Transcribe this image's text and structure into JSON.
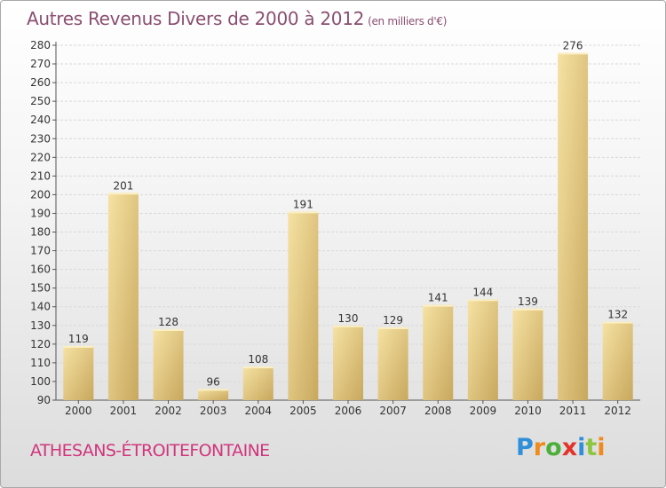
{
  "title": "Autres Revenus Divers de 2000 à 2012",
  "subtitle": "(en milliers d'€)",
  "location": "ATHESANS-ÉTROITEFONTAINE",
  "logo": {
    "letters": [
      "P",
      "r",
      "o",
      "x",
      "i",
      "t",
      "i"
    ],
    "colors": [
      "#2f8fd8",
      "#f08a1c",
      "#4caf3a",
      "#e4322b",
      "#2f8fd8",
      "#8dc63f",
      "#f08a1c"
    ]
  },
  "colors": {
    "title": "#8a4f70",
    "location": "#d0357d",
    "bar_light": "#f6e2a3",
    "bar_dark": "#c8a85e",
    "grid": "#d9d9d9"
  },
  "chart_data": {
    "type": "bar",
    "title": "Autres Revenus Divers de 2000 à 2012",
    "subtitle": "(en milliers d'€)",
    "xlabel": "",
    "ylabel": "",
    "categories": [
      "2000",
      "2001",
      "2002",
      "2003",
      "2004",
      "2005",
      "2006",
      "2007",
      "2008",
      "2009",
      "2010",
      "2011",
      "2012"
    ],
    "values": [
      119,
      201,
      128,
      96,
      108,
      191,
      130,
      129,
      141,
      144,
      139,
      276,
      132
    ],
    "ylim": [
      90,
      280
    ],
    "yticks": [
      90,
      100,
      110,
      120,
      130,
      140,
      150,
      160,
      170,
      180,
      190,
      200,
      210,
      220,
      230,
      240,
      250,
      260,
      270,
      280
    ],
    "grid": true,
    "legend": "none"
  }
}
